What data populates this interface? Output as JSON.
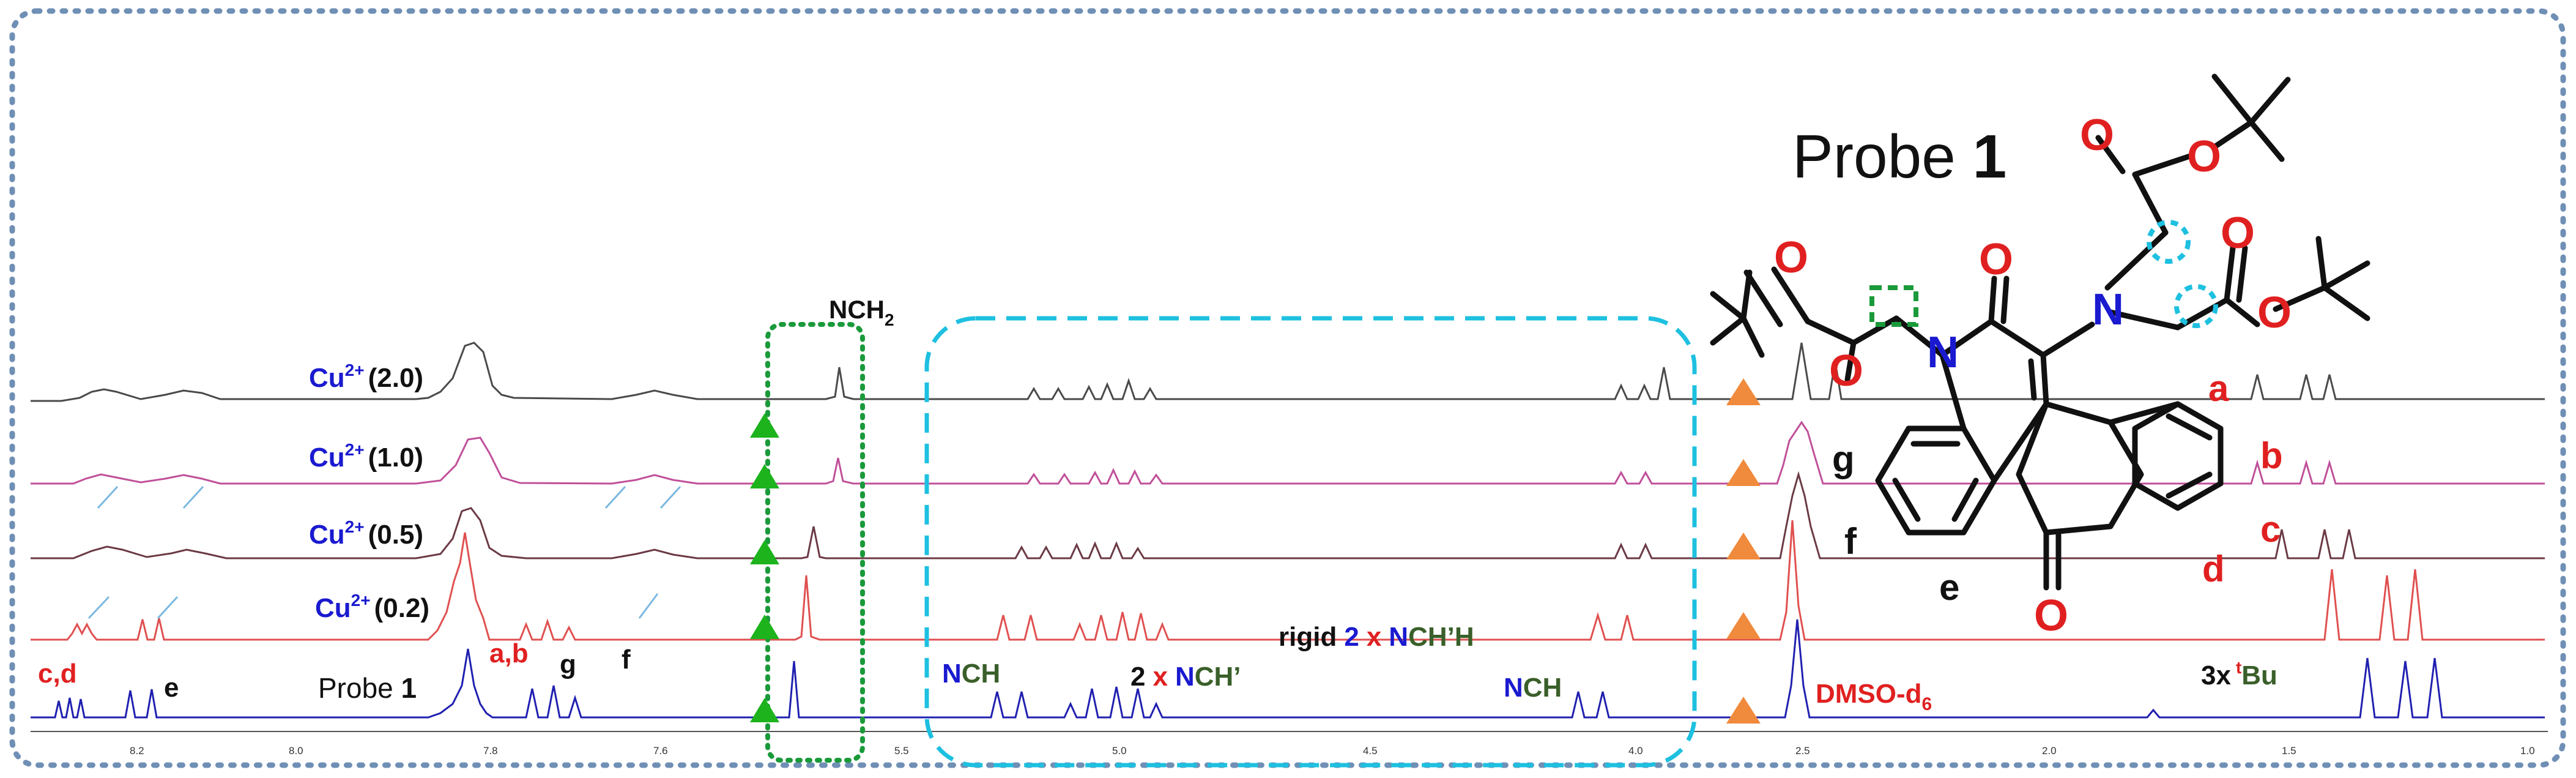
{
  "probe_title": {
    "prefix": "Probe ",
    "number": "1"
  },
  "traces": [
    {
      "id": "cu20",
      "color": "#4a4a4a",
      "ion": "Cu",
      "charge": "2+",
      "eq": "(2.0)",
      "side_label": "a"
    },
    {
      "id": "cu10",
      "color": "#c0509a",
      "ion": "Cu",
      "charge": "2+",
      "eq": "(1.0)",
      "side_label": "b"
    },
    {
      "id": "cu05",
      "color": "#6b3a45",
      "ion": "Cu",
      "charge": "2+",
      "eq": "(0.5)",
      "side_label": "c"
    },
    {
      "id": "cu02",
      "color": "#e05050",
      "ion": "Cu",
      "charge": "2+",
      "eq": "(0.2)",
      "side_label": "d"
    },
    {
      "id": "probe",
      "color": "#2020b0",
      "name": "Probe ",
      "name_number": "1"
    }
  ],
  "peak_labels": {
    "cd": "c,d",
    "e": "e",
    "ab": "a,b",
    "g": "g",
    "f": "f",
    "nch2": "NCH",
    "nch2_sub": "2",
    "nch_left": {
      "n": "N",
      "ch": "CH"
    },
    "two_nch": {
      "num": "2",
      "x": "x",
      "n": "N",
      "ch": "CH’"
    },
    "rigid": {
      "word": "rigid",
      "num": "2",
      "x": "x",
      "n": "N",
      "ch": "CH’H"
    },
    "nch_right": {
      "n": "N",
      "ch": "CH"
    },
    "dmso": {
      "main": "DMSO-d",
      "sub": "6"
    },
    "tbu": {
      "count": "3x",
      "sup": "t",
      "bu": "Bu"
    }
  },
  "structure_labels": {
    "e": "e",
    "f": "f",
    "g": "g",
    "a": "a",
    "b": "b",
    "c": "c",
    "d": "d",
    "atoms": {
      "O": "O",
      "N": "N"
    }
  },
  "axis_ticks": [
    "8.2",
    "8.0",
    "7.8",
    "7.6",
    "5.5",
    "5.0",
    "4.5",
    "4.0",
    "2.5",
    "2.0",
    "1.5",
    "1.0"
  ],
  "colors": {
    "green_marker": "#1db31d",
    "orange_marker": "#f08a3c",
    "cyan_box": "#1ec0e0",
    "green_box": "#1a9a3a",
    "frame": "#6f8fb5",
    "red": "#e02020",
    "blue": "#1a1ad0",
    "dkgreen": "#3a5f2a"
  }
}
